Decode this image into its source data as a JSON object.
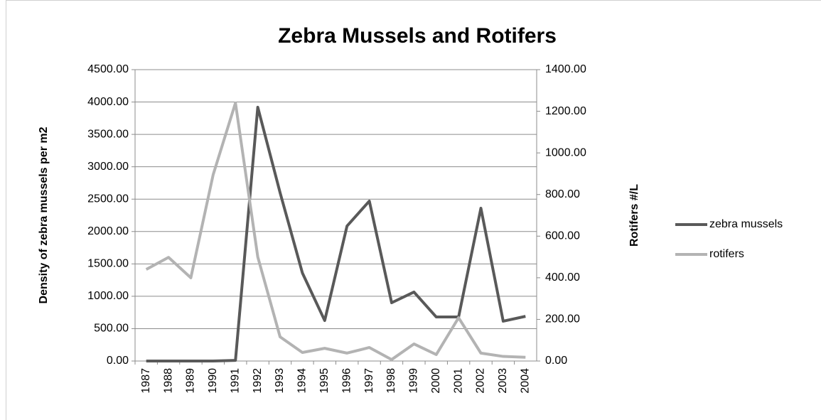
{
  "chart_data": {
    "type": "line",
    "title": "Zebra Mussels and Rotifers",
    "y_label": "Density of zebra mussels per m2",
    "y2_label": "Rotifers #/L",
    "categories": [
      "1987",
      "1988",
      "1989",
      "1990",
      "1991",
      "1992",
      "1993",
      "1994",
      "1995",
      "1996",
      "1997",
      "1998",
      "1999",
      "2000",
      "2001",
      "2002",
      "2003",
      "2004"
    ],
    "series": [
      {
        "name": "zebra mussels",
        "color": "#595959",
        "values": [
          0,
          0,
          0,
          0,
          10,
          3920,
          2600,
          1360,
          625,
          2085,
          2470,
          900,
          1065,
          680,
          680,
          2360,
          615,
          690
        ]
      },
      {
        "name": "rotifers",
        "color": "#b3b3b3",
        "axis": "y2",
        "values": [
          440,
          498,
          400,
          895,
          1240,
          500,
          116,
          41,
          61,
          38,
          65,
          7,
          82,
          31,
          208,
          38,
          22,
          18
        ]
      }
    ],
    "ylim": [
      0,
      4500
    ],
    "yticks": [
      {
        "value": 0,
        "label": "0.00"
      },
      {
        "value": 500,
        "label": "500.00"
      },
      {
        "value": 1000,
        "label": "1000.00"
      },
      {
        "value": 1500,
        "label": "1500.00"
      },
      {
        "value": 2000,
        "label": "2000.00"
      },
      {
        "value": 2500,
        "label": "2500.00"
      },
      {
        "value": 3000,
        "label": "3000.00"
      },
      {
        "value": 3500,
        "label": "3500.00"
      },
      {
        "value": 4000,
        "label": "4000.00"
      },
      {
        "value": 4500,
        "label": "4500.00"
      }
    ],
    "y2lim": [
      0,
      1400
    ],
    "y2ticks": [
      {
        "value": 0,
        "label": "0.00"
      },
      {
        "value": 200,
        "label": "200.00"
      },
      {
        "value": 400,
        "label": "400.00"
      },
      {
        "value": 600,
        "label": "600.00"
      },
      {
        "value": 800,
        "label": "800.00"
      },
      {
        "value": 1000,
        "label": "1000.00"
      },
      {
        "value": 1200,
        "label": "1200.00"
      },
      {
        "value": 1400,
        "label": "1400.00"
      }
    ],
    "grid": true,
    "legend": "right"
  }
}
